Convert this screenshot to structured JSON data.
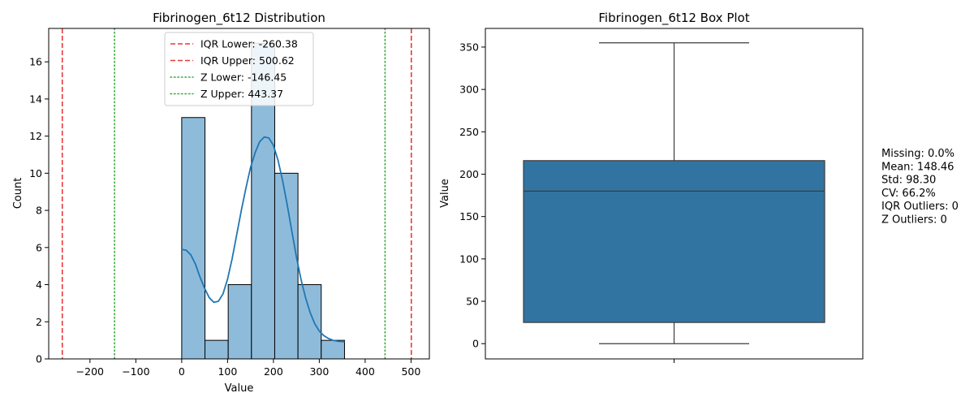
{
  "chart_data": [
    {
      "type": "histogram",
      "title": "Fibrinogen_6t12 Distribution",
      "xlabel": "Value",
      "ylabel": "Count",
      "xlim": [
        -290,
        540
      ],
      "ylim": [
        0,
        17.8
      ],
      "xticks": [
        -200,
        -100,
        0,
        100,
        200,
        300,
        400,
        500
      ],
      "yticks": [
        0,
        2,
        4,
        6,
        8,
        10,
        12,
        14,
        16
      ],
      "bar_color": "#8fbbdb",
      "bins": [
        {
          "x0": 0,
          "x1": 50.7,
          "count": 13
        },
        {
          "x0": 50.7,
          "x1": 101.4,
          "count": 1
        },
        {
          "x0": 101.4,
          "x1": 152.1,
          "count": 4
        },
        {
          "x0": 152.1,
          "x1": 202.8,
          "count": 17
        },
        {
          "x0": 202.8,
          "x1": 253.5,
          "count": 10
        },
        {
          "x0": 253.5,
          "x1": 304.2,
          "count": 4
        },
        {
          "x0": 304.2,
          "x1": 355,
          "count": 1
        }
      ],
      "kde": {
        "color": "#1f77b4",
        "points": [
          [
            0,
            5.9
          ],
          [
            10,
            5.85
          ],
          [
            20,
            5.6
          ],
          [
            30,
            5.1
          ],
          [
            40,
            4.4
          ],
          [
            50,
            3.8
          ],
          [
            60,
            3.3
          ],
          [
            70,
            3.05
          ],
          [
            80,
            3.1
          ],
          [
            90,
            3.5
          ],
          [
            100,
            4.3
          ],
          [
            110,
            5.4
          ],
          [
            120,
            6.7
          ],
          [
            130,
            8.0
          ],
          [
            140,
            9.2
          ],
          [
            150,
            10.3
          ],
          [
            160,
            11.1
          ],
          [
            170,
            11.7
          ],
          [
            180,
            11.95
          ],
          [
            190,
            11.9
          ],
          [
            200,
            11.5
          ],
          [
            210,
            10.7
          ],
          [
            220,
            9.6
          ],
          [
            230,
            8.3
          ],
          [
            240,
            6.9
          ],
          [
            250,
            5.5
          ],
          [
            260,
            4.3
          ],
          [
            270,
            3.3
          ],
          [
            280,
            2.5
          ],
          [
            290,
            1.9
          ],
          [
            300,
            1.5
          ],
          [
            310,
            1.25
          ],
          [
            320,
            1.1
          ],
          [
            330,
            1.0
          ],
          [
            340,
            0.95
          ],
          [
            355,
            0.92
          ]
        ]
      },
      "reference_lines": [
        {
          "label": "IQR Lower: -260.38",
          "x": -260.38,
          "color": "#e8393a",
          "style": "dashed"
        },
        {
          "label": "IQR Upper: 500.62",
          "x": 500.62,
          "color": "#e8393a",
          "style": "dashed"
        },
        {
          "label": "Z Lower: -146.45",
          "x": -146.45,
          "color": "#3aaa3a",
          "style": "dotted"
        },
        {
          "label": "Z Upper: 443.37",
          "x": 443.37,
          "color": "#3aaa3a",
          "style": "dotted"
        }
      ],
      "legend_position": "top-center"
    },
    {
      "type": "box",
      "title": "Fibrinogen_6t12 Box Plot",
      "ylabel": "Value",
      "ylim": [
        -18,
        372
      ],
      "yticks": [
        0,
        50,
        100,
        150,
        200,
        250,
        300,
        350
      ],
      "box_color": "#3274a1",
      "min": 0,
      "q1": 25,
      "median": 180,
      "q3": 216,
      "max": 355
    }
  ],
  "stats": [
    "Missing: 0.0%",
    "Mean: 148.46",
    "Std: 98.30",
    "CV: 66.2%",
    "IQR Outliers: 0",
    "Z Outliers: 0"
  ]
}
